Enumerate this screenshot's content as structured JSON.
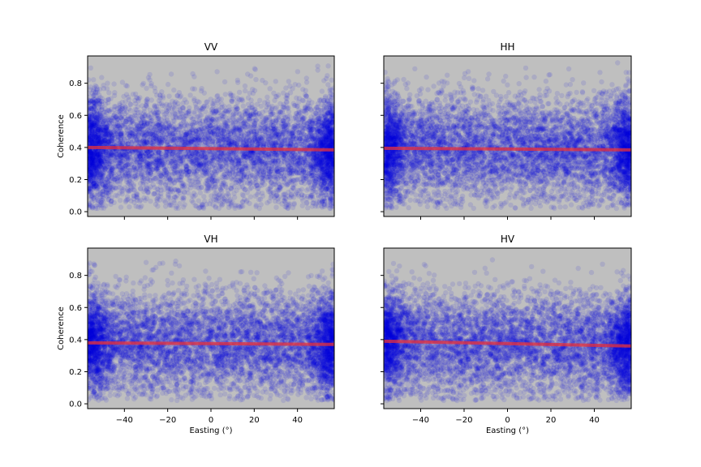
{
  "figure": {
    "background": "#ffffff",
    "axes_facecolor": "#bfbfbf",
    "point_color": "#0000e6",
    "trend_color": "#e8303a"
  },
  "chart_data": [
    {
      "type": "scatter",
      "title": "VV",
      "xlabel": "",
      "ylabel": "Coherence",
      "xlim": [
        -57,
        57
      ],
      "ylim": [
        -0.03,
        0.97
      ],
      "xticks": [
        -40,
        -20,
        0,
        20,
        40
      ],
      "xtick_labels": [
        "",
        "",
        "",
        "",
        ""
      ],
      "yticks": [
        0.0,
        0.2,
        0.4,
        0.6,
        0.8
      ],
      "ytick_labels": [
        "0.0",
        "0.2",
        "0.4",
        "0.6",
        "0.8"
      ],
      "grid": false,
      "point_cloud": {
        "n": 7000,
        "y_mean": 0.39,
        "y_sd": 0.16,
        "y_min": 0.02,
        "y_max": 0.93,
        "edge_density": "higher near x = ±57"
      },
      "trend_line": {
        "x": [
          -57,
          57
        ],
        "y": [
          0.4,
          0.385
        ]
      }
    },
    {
      "type": "scatter",
      "title": "HH",
      "xlabel": "",
      "ylabel": "",
      "xlim": [
        -57,
        57
      ],
      "ylim": [
        -0.03,
        0.97
      ],
      "xticks": [
        -40,
        -20,
        0,
        20,
        40
      ],
      "xtick_labels": [
        "",
        "",
        "",
        "",
        ""
      ],
      "yticks": [
        0.0,
        0.2,
        0.4,
        0.6,
        0.8
      ],
      "ytick_labels": [
        "",
        "",
        "",
        "",
        ""
      ],
      "grid": false,
      "point_cloud": {
        "n": 7000,
        "y_mean": 0.39,
        "y_sd": 0.16,
        "y_min": 0.02,
        "y_max": 0.93,
        "edge_density": "higher near x = ±57"
      },
      "trend_line": {
        "x": [
          -57,
          57
        ],
        "y": [
          0.395,
          0.385
        ]
      }
    },
    {
      "type": "scatter",
      "title": "VH",
      "xlabel": "Easting (°)",
      "ylabel": "Coherence",
      "xlim": [
        -57,
        57
      ],
      "ylim": [
        -0.03,
        0.97
      ],
      "xticks": [
        -40,
        -20,
        0,
        20,
        40
      ],
      "xtick_labels": [
        "−40",
        "−20",
        "0",
        "20",
        "40"
      ],
      "yticks": [
        0.0,
        0.2,
        0.4,
        0.6,
        0.8
      ],
      "ytick_labels": [
        "0.0",
        "0.2",
        "0.4",
        "0.6",
        "0.8"
      ],
      "grid": false,
      "point_cloud": {
        "n": 7000,
        "y_mean": 0.375,
        "y_sd": 0.16,
        "y_min": 0.02,
        "y_max": 0.9,
        "edge_density": "higher near x = ±57"
      },
      "trend_line": {
        "x": [
          -57,
          57
        ],
        "y": [
          0.38,
          0.37
        ]
      }
    },
    {
      "type": "scatter",
      "title": "HV",
      "xlabel": "Easting (°)",
      "ylabel": "",
      "xlim": [
        -57,
        57
      ],
      "ylim": [
        -0.03,
        0.97
      ],
      "xticks": [
        -40,
        -20,
        0,
        20,
        40
      ],
      "xtick_labels": [
        "−40",
        "−20",
        "0",
        "20",
        "40"
      ],
      "yticks": [
        0.0,
        0.2,
        0.4,
        0.6,
        0.8
      ],
      "ytick_labels": [
        "",
        "",
        "",
        "",
        ""
      ],
      "grid": false,
      "point_cloud": {
        "n": 7000,
        "y_mean": 0.375,
        "y_sd": 0.16,
        "y_min": 0.02,
        "y_max": 0.9,
        "edge_density": "higher near x = ±57"
      },
      "trend_line": {
        "x": [
          -57,
          57
        ],
        "y": [
          0.39,
          0.36
        ]
      }
    }
  ]
}
